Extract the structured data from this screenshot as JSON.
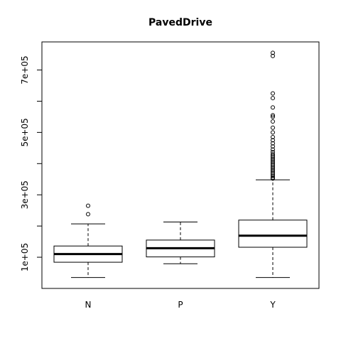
{
  "chart_data": {
    "type": "boxplot",
    "title": "PavedDrive",
    "xlabel": "",
    "ylabel": "",
    "categories": [
      "N",
      "P",
      "Y"
    ],
    "ylim": [
      0,
      790000
    ],
    "yticks": [
      100000,
      200000,
      300000,
      400000,
      500000,
      600000,
      700000
    ],
    "ytick_labels": [
      "1e+05",
      "",
      "3e+05",
      "",
      "5e+05",
      "",
      "7e+05"
    ],
    "boxes": [
      {
        "name": "N",
        "whisker_low": 34900,
        "q1": 84000,
        "median": 110000,
        "q3": 136000,
        "whisker_high": 207000,
        "outliers": [
          238000,
          265000
        ]
      },
      {
        "name": "P",
        "whisker_low": 79000,
        "q1": 101000,
        "median": 129000,
        "q3": 155000,
        "whisker_high": 213000,
        "outliers": []
      },
      {
        "name": "Y",
        "whisker_low": 34900,
        "q1": 132000,
        "median": 169000,
        "q3": 219000,
        "whisker_high": 348000,
        "outliers": [
          352000,
          355000,
          360000,
          365000,
          370000,
          375000,
          380000,
          385000,
          390000,
          395000,
          400000,
          405000,
          410000,
          415000,
          420000,
          425000,
          430000,
          437000,
          445000,
          455000,
          465000,
          475000,
          485000,
          500000,
          515000,
          535000,
          550000,
          555000,
          580000,
          610000,
          625000,
          745000,
          755000
        ]
      }
    ]
  }
}
